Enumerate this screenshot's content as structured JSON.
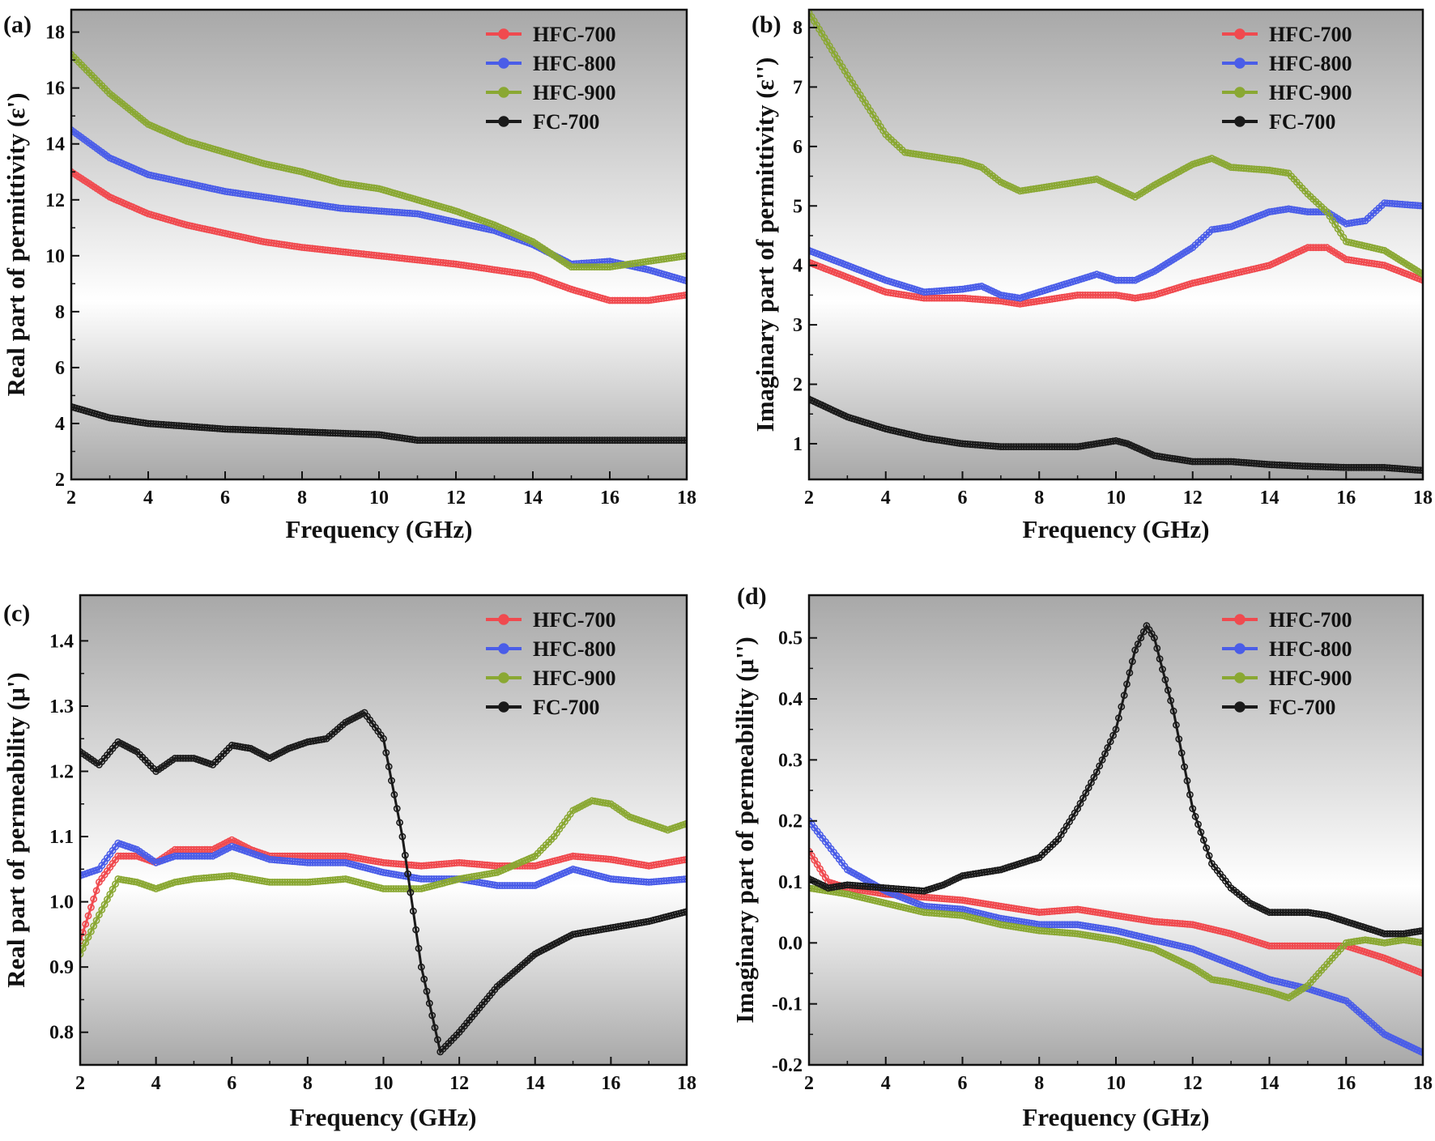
{
  "figure": {
    "panel_background": {
      "top": "#a8a8a8",
      "middle": "#ffffff",
      "bottom": "#a8a8a8"
    },
    "series_colors": {
      "HFC-700": "#f04a4f",
      "HFC-800": "#4a5de8",
      "HFC-900": "#8aa833",
      "FC-700": "#1a1a1a"
    }
  },
  "chart_data": [
    {
      "type": "line",
      "panel_label": "(a)",
      "xlabel": "Frequency (GHz)",
      "ylabel": "Real part of permittivity (ε')",
      "xlim": [
        2,
        18
      ],
      "ylim": [
        2,
        18.8
      ],
      "xticks": [
        2,
        4,
        6,
        8,
        10,
        12,
        14,
        16,
        18
      ],
      "yticks": [
        2,
        4,
        6,
        8,
        10,
        12,
        14,
        16,
        18
      ],
      "legend_position": "top-right",
      "series": [
        {
          "name": "HFC-700",
          "color": "#f04a4f",
          "x": [
            2,
            3,
            4,
            5,
            6,
            7,
            8,
            9,
            10,
            11,
            12,
            13,
            14,
            15,
            16,
            17,
            18
          ],
          "y": [
            13.0,
            12.1,
            11.5,
            11.1,
            10.8,
            10.5,
            10.3,
            10.15,
            10.0,
            9.85,
            9.7,
            9.5,
            9.3,
            8.8,
            8.4,
            8.4,
            8.6
          ]
        },
        {
          "name": "HFC-800",
          "color": "#4a5de8",
          "x": [
            2,
            3,
            4,
            5,
            6,
            7,
            8,
            9,
            10,
            11,
            12,
            13,
            14,
            15,
            16,
            17,
            18
          ],
          "y": [
            14.5,
            13.5,
            12.9,
            12.6,
            12.3,
            12.1,
            11.9,
            11.7,
            11.6,
            11.5,
            11.2,
            10.9,
            10.4,
            9.7,
            9.8,
            9.5,
            9.1
          ]
        },
        {
          "name": "HFC-900",
          "color": "#8aa833",
          "x": [
            2,
            3,
            4,
            5,
            6,
            7,
            8,
            9,
            10,
            11,
            12,
            13,
            14,
            15,
            16,
            17,
            18
          ],
          "y": [
            17.2,
            15.8,
            14.7,
            14.1,
            13.7,
            13.3,
            13.0,
            12.6,
            12.4,
            12.0,
            11.6,
            11.1,
            10.5,
            9.6,
            9.6,
            9.8,
            10.0
          ]
        },
        {
          "name": "FC-700",
          "color": "#1a1a1a",
          "x": [
            2,
            3,
            4,
            5,
            6,
            7,
            8,
            9,
            10,
            11,
            12,
            13,
            14,
            15,
            16,
            17,
            18
          ],
          "y": [
            4.6,
            4.2,
            4.0,
            3.9,
            3.8,
            3.75,
            3.7,
            3.65,
            3.6,
            3.4,
            3.4,
            3.4,
            3.4,
            3.4,
            3.4,
            3.4,
            3.4
          ]
        }
      ]
    },
    {
      "type": "line",
      "panel_label": "(b)",
      "xlabel": "Frequency (GHz)",
      "ylabel": "Imaginary part of permittivity (ε'')",
      "xlim": [
        2,
        18
      ],
      "ylim": [
        0.4,
        8.3
      ],
      "xticks": [
        2,
        4,
        6,
        8,
        10,
        12,
        14,
        16,
        18
      ],
      "yticks": [
        1,
        2,
        3,
        4,
        5,
        6,
        7,
        8
      ],
      "legend_position": "top-right",
      "series": [
        {
          "name": "HFC-700",
          "color": "#f04a4f",
          "x": [
            2,
            3,
            4,
            5,
            6,
            7,
            7.5,
            8,
            9,
            10,
            10.5,
            11,
            12,
            13,
            14,
            15,
            15.5,
            16,
            17,
            18
          ],
          "y": [
            4.05,
            3.8,
            3.55,
            3.45,
            3.45,
            3.4,
            3.35,
            3.4,
            3.5,
            3.5,
            3.45,
            3.5,
            3.7,
            3.85,
            4.0,
            4.3,
            4.3,
            4.1,
            4.0,
            3.75
          ]
        },
        {
          "name": "HFC-800",
          "color": "#4a5de8",
          "x": [
            2,
            3,
            4,
            5,
            6,
            6.5,
            7,
            7.5,
            8,
            9,
            9.5,
            10,
            10.5,
            11,
            12,
            12.5,
            13,
            14,
            14.5,
            15,
            15.5,
            16,
            16.5,
            17,
            18
          ],
          "y": [
            4.25,
            4.0,
            3.75,
            3.55,
            3.6,
            3.65,
            3.5,
            3.45,
            3.55,
            3.75,
            3.85,
            3.75,
            3.75,
            3.9,
            4.3,
            4.6,
            4.65,
            4.9,
            4.95,
            4.9,
            4.9,
            4.7,
            4.75,
            5.05,
            5.0
          ]
        },
        {
          "name": "HFC-900",
          "color": "#8aa833",
          "x": [
            2,
            3,
            4,
            4.5,
            5,
            6,
            6.5,
            7,
            7.5,
            8,
            9,
            9.5,
            10,
            10.5,
            11,
            12,
            12.5,
            13,
            14,
            14.5,
            15,
            15.5,
            16,
            17,
            18
          ],
          "y": [
            8.25,
            7.2,
            6.2,
            5.9,
            5.85,
            5.75,
            5.65,
            5.4,
            5.25,
            5.3,
            5.4,
            5.45,
            5.3,
            5.15,
            5.35,
            5.7,
            5.8,
            5.65,
            5.6,
            5.55,
            5.2,
            4.9,
            4.4,
            4.25,
            3.85
          ]
        },
        {
          "name": "FC-700",
          "color": "#1a1a1a",
          "x": [
            2,
            3,
            4,
            5,
            6,
            7,
            8,
            9,
            9.5,
            10,
            10.3,
            11,
            12,
            13,
            14,
            15,
            16,
            17,
            18
          ],
          "y": [
            1.75,
            1.45,
            1.25,
            1.1,
            1.0,
            0.95,
            0.95,
            0.95,
            1.0,
            1.05,
            1.0,
            0.8,
            0.7,
            0.7,
            0.65,
            0.62,
            0.6,
            0.6,
            0.55
          ]
        }
      ]
    },
    {
      "type": "line",
      "panel_label": "(c)",
      "xlabel": "Frequency (GHz)",
      "ylabel": "Real part of permeability (μ')",
      "xlim": [
        2,
        18
      ],
      "ylim": [
        0.75,
        1.47
      ],
      "xticks": [
        2,
        4,
        6,
        8,
        10,
        12,
        14,
        16,
        18
      ],
      "yticks": [
        0.8,
        0.9,
        1.0,
        1.1,
        1.2,
        1.3,
        1.4
      ],
      "legend_position": "top-right",
      "series": [
        {
          "name": "HFC-700",
          "color": "#f04a4f",
          "x": [
            2,
            2.5,
            3,
            3.5,
            4,
            4.5,
            5,
            5.5,
            6,
            6.5,
            7,
            8,
            9,
            10,
            11,
            12,
            13,
            14,
            15,
            16,
            17,
            18
          ],
          "y": [
            0.94,
            1.03,
            1.07,
            1.07,
            1.06,
            1.08,
            1.08,
            1.08,
            1.095,
            1.08,
            1.07,
            1.07,
            1.07,
            1.06,
            1.055,
            1.06,
            1.055,
            1.055,
            1.07,
            1.065,
            1.055,
            1.065
          ]
        },
        {
          "name": "HFC-800",
          "color": "#4a5de8",
          "x": [
            2,
            2.5,
            3,
            3.5,
            4,
            4.5,
            5,
            5.5,
            6,
            6.5,
            7,
            8,
            9,
            10,
            11,
            12,
            13,
            14,
            15,
            16,
            17,
            18
          ],
          "y": [
            1.04,
            1.05,
            1.09,
            1.08,
            1.06,
            1.07,
            1.07,
            1.07,
            1.085,
            1.075,
            1.065,
            1.06,
            1.06,
            1.045,
            1.035,
            1.035,
            1.025,
            1.025,
            1.05,
            1.035,
            1.03,
            1.035
          ]
        },
        {
          "name": "HFC-900",
          "color": "#8aa833",
          "x": [
            2,
            2.5,
            3,
            3.5,
            4,
            4.5,
            5,
            6,
            7,
            8,
            9,
            10,
            11,
            12,
            13,
            14,
            14.5,
            15,
            15.5,
            16,
            16.5,
            17,
            17.5,
            18
          ],
          "y": [
            0.92,
            0.98,
            1.035,
            1.03,
            1.02,
            1.03,
            1.035,
            1.04,
            1.03,
            1.03,
            1.035,
            1.02,
            1.02,
            1.035,
            1.045,
            1.07,
            1.1,
            1.14,
            1.155,
            1.15,
            1.13,
            1.12,
            1.11,
            1.12
          ]
        },
        {
          "name": "FC-700",
          "color": "#1a1a1a",
          "x": [
            2,
            2.5,
            3,
            3.5,
            4,
            4.5,
            5,
            5.5,
            6,
            6.5,
            7,
            7.5,
            8,
            8.5,
            9,
            9.5,
            10,
            10.5,
            11,
            11.5,
            12,
            13,
            14,
            15,
            16,
            17,
            18
          ],
          "y": [
            1.23,
            1.21,
            1.245,
            1.23,
            1.2,
            1.22,
            1.22,
            1.21,
            1.24,
            1.235,
            1.22,
            1.235,
            1.245,
            1.25,
            1.275,
            1.29,
            1.25,
            1.1,
            0.9,
            0.77,
            0.8,
            0.87,
            0.92,
            0.95,
            0.96,
            0.97,
            0.985
          ]
        }
      ]
    },
    {
      "type": "line",
      "panel_label": "(d)",
      "xlabel": "Frequency (GHz)",
      "ylabel": "Imaginary part of permeability (μ'')",
      "xlim": [
        2,
        18
      ],
      "ylim": [
        -0.2,
        0.57
      ],
      "xticks": [
        2,
        4,
        6,
        8,
        10,
        12,
        14,
        16,
        18
      ],
      "yticks": [
        -0.2,
        -0.1,
        0.0,
        0.1,
        0.2,
        0.3,
        0.4,
        0.5
      ],
      "legend_position": "top-right",
      "series": [
        {
          "name": "HFC-700",
          "color": "#f04a4f",
          "x": [
            2,
            2.5,
            3,
            4,
            5,
            6,
            7,
            8,
            9,
            10,
            11,
            12,
            13,
            14,
            15,
            16,
            17,
            18
          ],
          "y": [
            0.15,
            0.1,
            0.09,
            0.08,
            0.075,
            0.07,
            0.06,
            0.05,
            0.055,
            0.045,
            0.035,
            0.03,
            0.015,
            -0.005,
            -0.005,
            -0.005,
            -0.025,
            -0.05
          ]
        },
        {
          "name": "HFC-800",
          "color": "#4a5de8",
          "x": [
            2,
            2.5,
            3,
            4,
            5,
            6,
            7,
            8,
            9,
            10,
            11,
            12,
            13,
            14,
            15,
            16,
            17,
            18
          ],
          "y": [
            0.2,
            0.16,
            0.12,
            0.085,
            0.06,
            0.055,
            0.04,
            0.03,
            0.03,
            0.02,
            0.005,
            -0.01,
            -0.035,
            -0.06,
            -0.075,
            -0.095,
            -0.15,
            -0.18
          ]
        },
        {
          "name": "HFC-900",
          "color": "#8aa833",
          "x": [
            2,
            2.5,
            3,
            4,
            5,
            6,
            7,
            8,
            9,
            10,
            11,
            12,
            12.5,
            13,
            14,
            14.5,
            15,
            15.5,
            16,
            16.5,
            17,
            17.5,
            18
          ],
          "y": [
            0.09,
            0.085,
            0.08,
            0.065,
            0.05,
            0.045,
            0.03,
            0.02,
            0.015,
            0.005,
            -0.01,
            -0.04,
            -0.06,
            -0.065,
            -0.08,
            -0.09,
            -0.07,
            -0.035,
            0.0,
            0.005,
            0.0,
            0.005,
            0.0
          ]
        },
        {
          "name": "FC-700",
          "color": "#1a1a1a",
          "x": [
            2,
            2.5,
            3,
            4,
            5,
            5.5,
            6,
            6.5,
            7,
            7.5,
            8,
            8.5,
            9,
            9.5,
            10,
            10.5,
            10.8,
            11,
            11.5,
            12,
            12.5,
            13,
            13.5,
            14,
            14.5,
            15,
            15.5,
            16,
            16.5,
            17,
            17.5,
            18
          ],
          "y": [
            0.105,
            0.09,
            0.095,
            0.09,
            0.085,
            0.095,
            0.11,
            0.115,
            0.12,
            0.13,
            0.14,
            0.17,
            0.22,
            0.28,
            0.35,
            0.48,
            0.52,
            0.5,
            0.38,
            0.22,
            0.13,
            0.09,
            0.065,
            0.05,
            0.05,
            0.05,
            0.045,
            0.035,
            0.025,
            0.015,
            0.015,
            0.02
          ]
        }
      ]
    }
  ]
}
